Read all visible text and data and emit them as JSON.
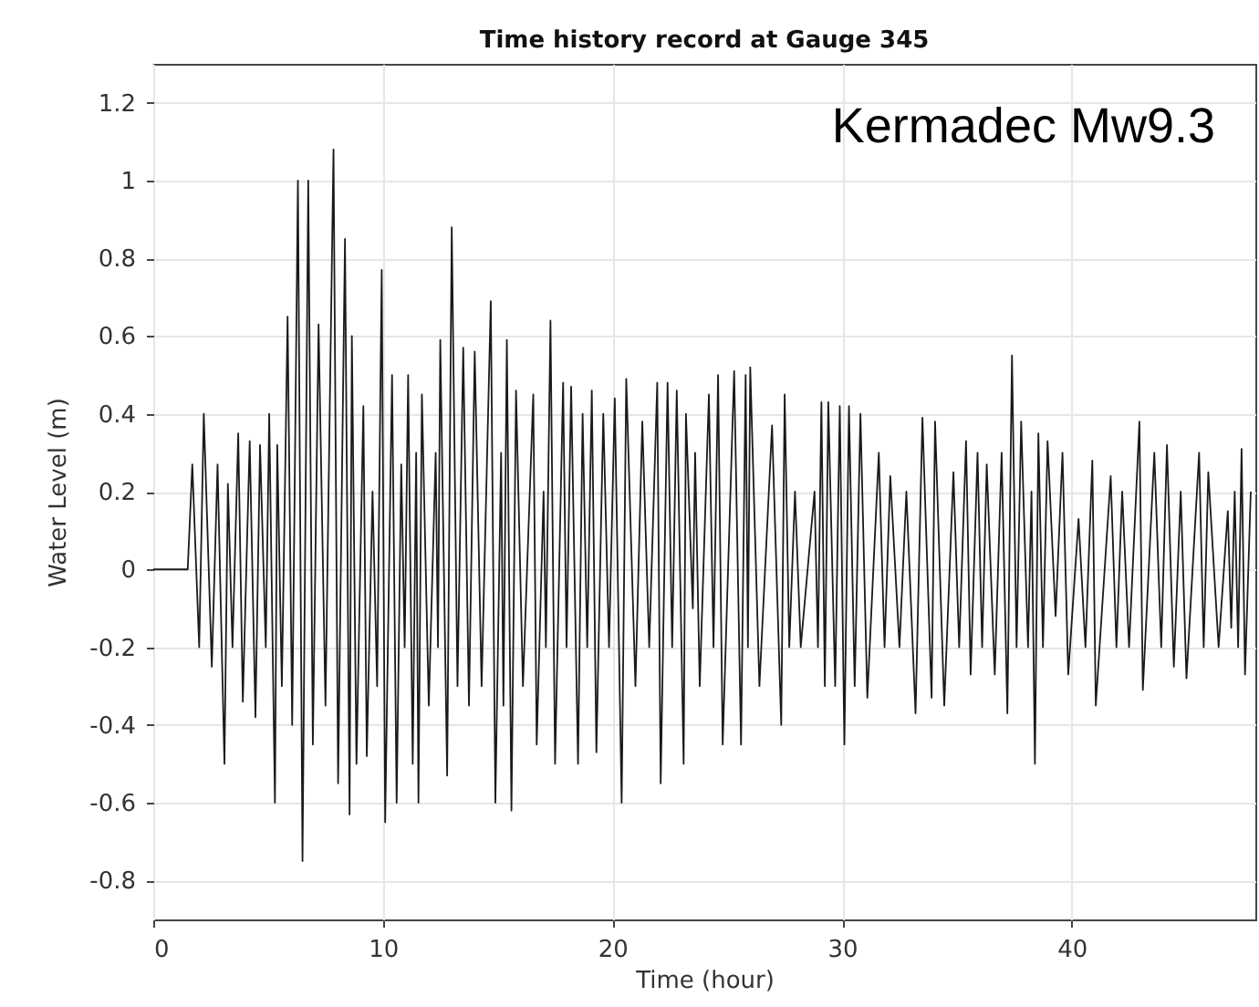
{
  "chart_data": {
    "type": "line",
    "title": "Time history record at Gauge 345",
    "xlabel": "Time (hour)",
    "ylabel": "Water Level (m)",
    "annotations": [
      "Kermadec Mw9.3"
    ],
    "xlim": [
      0,
      48
    ],
    "xticks": [
      0,
      10,
      20,
      30,
      40
    ],
    "ylim": [
      -0.9,
      1.3
    ],
    "yticks": [
      -0.8,
      -0.6,
      -0.4,
      -0.2,
      0,
      0.2,
      0.4,
      0.6,
      0.8,
      1,
      1.2
    ],
    "grid": true,
    "marker": "none",
    "line_style": "solid",
    "x": [
      0,
      1.5,
      1.7,
      2.0,
      2.2,
      2.55,
      2.8,
      3.1,
      3.25,
      3.45,
      3.7,
      3.9,
      4.2,
      4.45,
      4.65,
      4.9,
      5.05,
      5.3,
      5.4,
      5.6,
      5.85,
      6.05,
      6.3,
      6.5,
      6.75,
      6.95,
      7.2,
      7.5,
      7.85,
      8.05,
      8.35,
      8.55,
      8.65,
      8.85,
      9.15,
      9.3,
      9.55,
      9.75,
      9.95,
      10.1,
      10.4,
      10.6,
      10.8,
      10.95,
      11.1,
      11.3,
      11.45,
      11.55,
      11.7,
      12.0,
      12.3,
      12.4,
      12.5,
      12.8,
      13.0,
      13.25,
      13.5,
      13.75,
      14.0,
      14.3,
      14.7,
      14.9,
      15.15,
      15.25,
      15.4,
      15.6,
      15.8,
      16.1,
      16.55,
      16.7,
      17.0,
      17.1,
      17.3,
      17.5,
      17.85,
      18.0,
      18.2,
      18.5,
      18.7,
      18.9,
      19.1,
      19.3,
      19.6,
      19.85,
      20.1,
      20.4,
      20.6,
      21.0,
      21.3,
      21.6,
      21.95,
      22.1,
      22.4,
      22.6,
      22.8,
      23.1,
      23.2,
      23.5,
      23.6,
      23.8,
      24.2,
      24.4,
      24.6,
      24.8,
      25.3,
      25.6,
      25.8,
      25.9,
      26.0,
      26.4,
      26.95,
      27.35,
      27.5,
      27.7,
      27.95,
      28.2,
      28.8,
      28.95,
      29.1,
      29.25,
      29.4,
      29.7,
      29.9,
      30.1,
      30.3,
      30.55,
      30.8,
      31.1,
      31.6,
      31.85,
      32.1,
      32.5,
      32.8,
      33.2,
      33.5,
      33.9,
      34.05,
      34.45,
      34.85,
      35.1,
      35.4,
      35.6,
      35.9,
      36.1,
      36.3,
      36.65,
      36.95,
      37.2,
      37.4,
      37.6,
      37.8,
      38.1,
      38.25,
      38.4,
      38.55,
      38.75,
      38.95,
      39.3,
      39.6,
      39.85,
      40.3,
      40.6,
      40.9,
      41.05,
      41.7,
      41.95,
      42.2,
      42.5,
      42.95,
      43.1,
      43.6,
      43.9,
      44.15,
      44.45,
      44.75,
      45.0,
      45.55,
      45.75,
      45.95,
      46.4,
      46.8,
      46.95,
      47.1,
      47.25,
      47.4,
      47.55,
      47.8
    ],
    "series": [
      {
        "color": "#1a1a1a",
        "values": [
          0,
          0,
          0.27,
          -0.2,
          0.4,
          -0.25,
          0.27,
          -0.5,
          0.22,
          -0.2,
          0.35,
          -0.34,
          0.33,
          -0.38,
          0.32,
          -0.2,
          0.4,
          -0.6,
          0.32,
          -0.3,
          0.65,
          -0.4,
          1.0,
          -0.75,
          1.0,
          -0.45,
          0.63,
          -0.35,
          1.08,
          -0.55,
          0.85,
          -0.63,
          0.6,
          -0.5,
          0.42,
          -0.48,
          0.2,
          -0.3,
          0.77,
          -0.65,
          0.5,
          -0.6,
          0.27,
          -0.2,
          0.5,
          -0.5,
          0.3,
          -0.6,
          0.45,
          -0.35,
          0.3,
          -0.2,
          0.59,
          -0.53,
          0.88,
          -0.3,
          0.57,
          -0.35,
          0.56,
          -0.3,
          0.69,
          -0.6,
          0.3,
          -0.35,
          0.59,
          -0.62,
          0.46,
          -0.3,
          0.45,
          -0.45,
          0.2,
          -0.2,
          0.64,
          -0.5,
          0.48,
          -0.2,
          0.47,
          -0.5,
          0.4,
          -0.2,
          0.46,
          -0.47,
          0.4,
          -0.2,
          0.44,
          -0.6,
          0.49,
          -0.3,
          0.38,
          -0.2,
          0.48,
          -0.55,
          0.48,
          -0.2,
          0.46,
          -0.5,
          0.4,
          -0.1,
          0.3,
          -0.3,
          0.45,
          -0.2,
          0.5,
          -0.45,
          0.51,
          -0.45,
          0.5,
          -0.2,
          0.52,
          -0.3,
          0.37,
          -0.4,
          0.45,
          -0.2,
          0.2,
          -0.2,
          0.2,
          -0.2,
          0.43,
          -0.3,
          0.43,
          -0.3,
          0.42,
          -0.45,
          0.42,
          -0.3,
          0.4,
          -0.33,
          0.3,
          -0.2,
          0.24,
          -0.2,
          0.2,
          -0.37,
          0.39,
          -0.33,
          0.38,
          -0.35,
          0.25,
          -0.2,
          0.33,
          -0.27,
          0.3,
          -0.2,
          0.27,
          -0.27,
          0.3,
          -0.37,
          0.55,
          -0.2,
          0.38,
          -0.2,
          0.2,
          -0.5,
          0.35,
          -0.2,
          0.33,
          -0.12,
          0.3,
          -0.27,
          0.13,
          -0.2,
          0.28,
          -0.35,
          0.24,
          -0.2,
          0.2,
          -0.2,
          0.38,
          -0.31,
          0.3,
          -0.2,
          0.32,
          -0.25,
          0.2,
          -0.28,
          0.3,
          -0.2,
          0.25,
          -0.2,
          0.15,
          -0.15,
          0.2,
          -0.2,
          0.31,
          -0.27,
          0.2
        ]
      }
    ]
  }
}
